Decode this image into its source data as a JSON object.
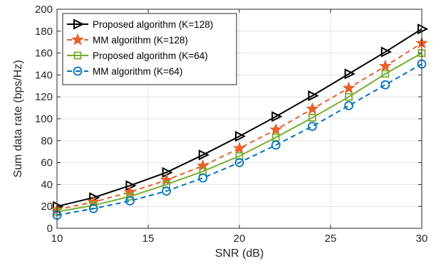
{
  "chart_data": {
    "type": "line",
    "title": "",
    "xlabel": "SNR (dB)",
    "ylabel": "Sum data rate (bps/Hz)",
    "xlim": [
      10,
      30
    ],
    "ylim": [
      0,
      200
    ],
    "xticks": [
      10,
      15,
      20,
      25,
      30
    ],
    "yticks": [
      0,
      20,
      40,
      60,
      80,
      100,
      120,
      140,
      160,
      180,
      200
    ],
    "grid": true,
    "legend_position": "top-left",
    "x": [
      10,
      12,
      14,
      16,
      18,
      20,
      22,
      24,
      26,
      28,
      30
    ],
    "series": [
      {
        "name": "Proposed algorithm (K=128)",
        "color": "#000000",
        "line_style": "solid",
        "marker": "triangle-right",
        "values": [
          20,
          28,
          39,
          51,
          67,
          84,
          102,
          121,
          141,
          161,
          182
        ]
      },
      {
        "name": "MM algorithm (K=128)",
        "color": "#e8612c",
        "line_style": "dashed",
        "marker": "star",
        "values": [
          17,
          24,
          33,
          44,
          57,
          73,
          90,
          109,
          128,
          148,
          169
        ]
      },
      {
        "name": "Proposed algorithm (K=64)",
        "color": "#77ac30",
        "line_style": "solid",
        "marker": "square",
        "values": [
          15,
          21,
          29,
          40,
          52,
          66,
          83,
          101,
          120,
          141,
          160
        ]
      },
      {
        "name": "MM algorithm (K=64)",
        "color": "#0072bd",
        "line_style": "dashed",
        "marker": "circle",
        "values": [
          12,
          18,
          25,
          34,
          46,
          60,
          76,
          93,
          112,
          131,
          150
        ]
      }
    ]
  }
}
